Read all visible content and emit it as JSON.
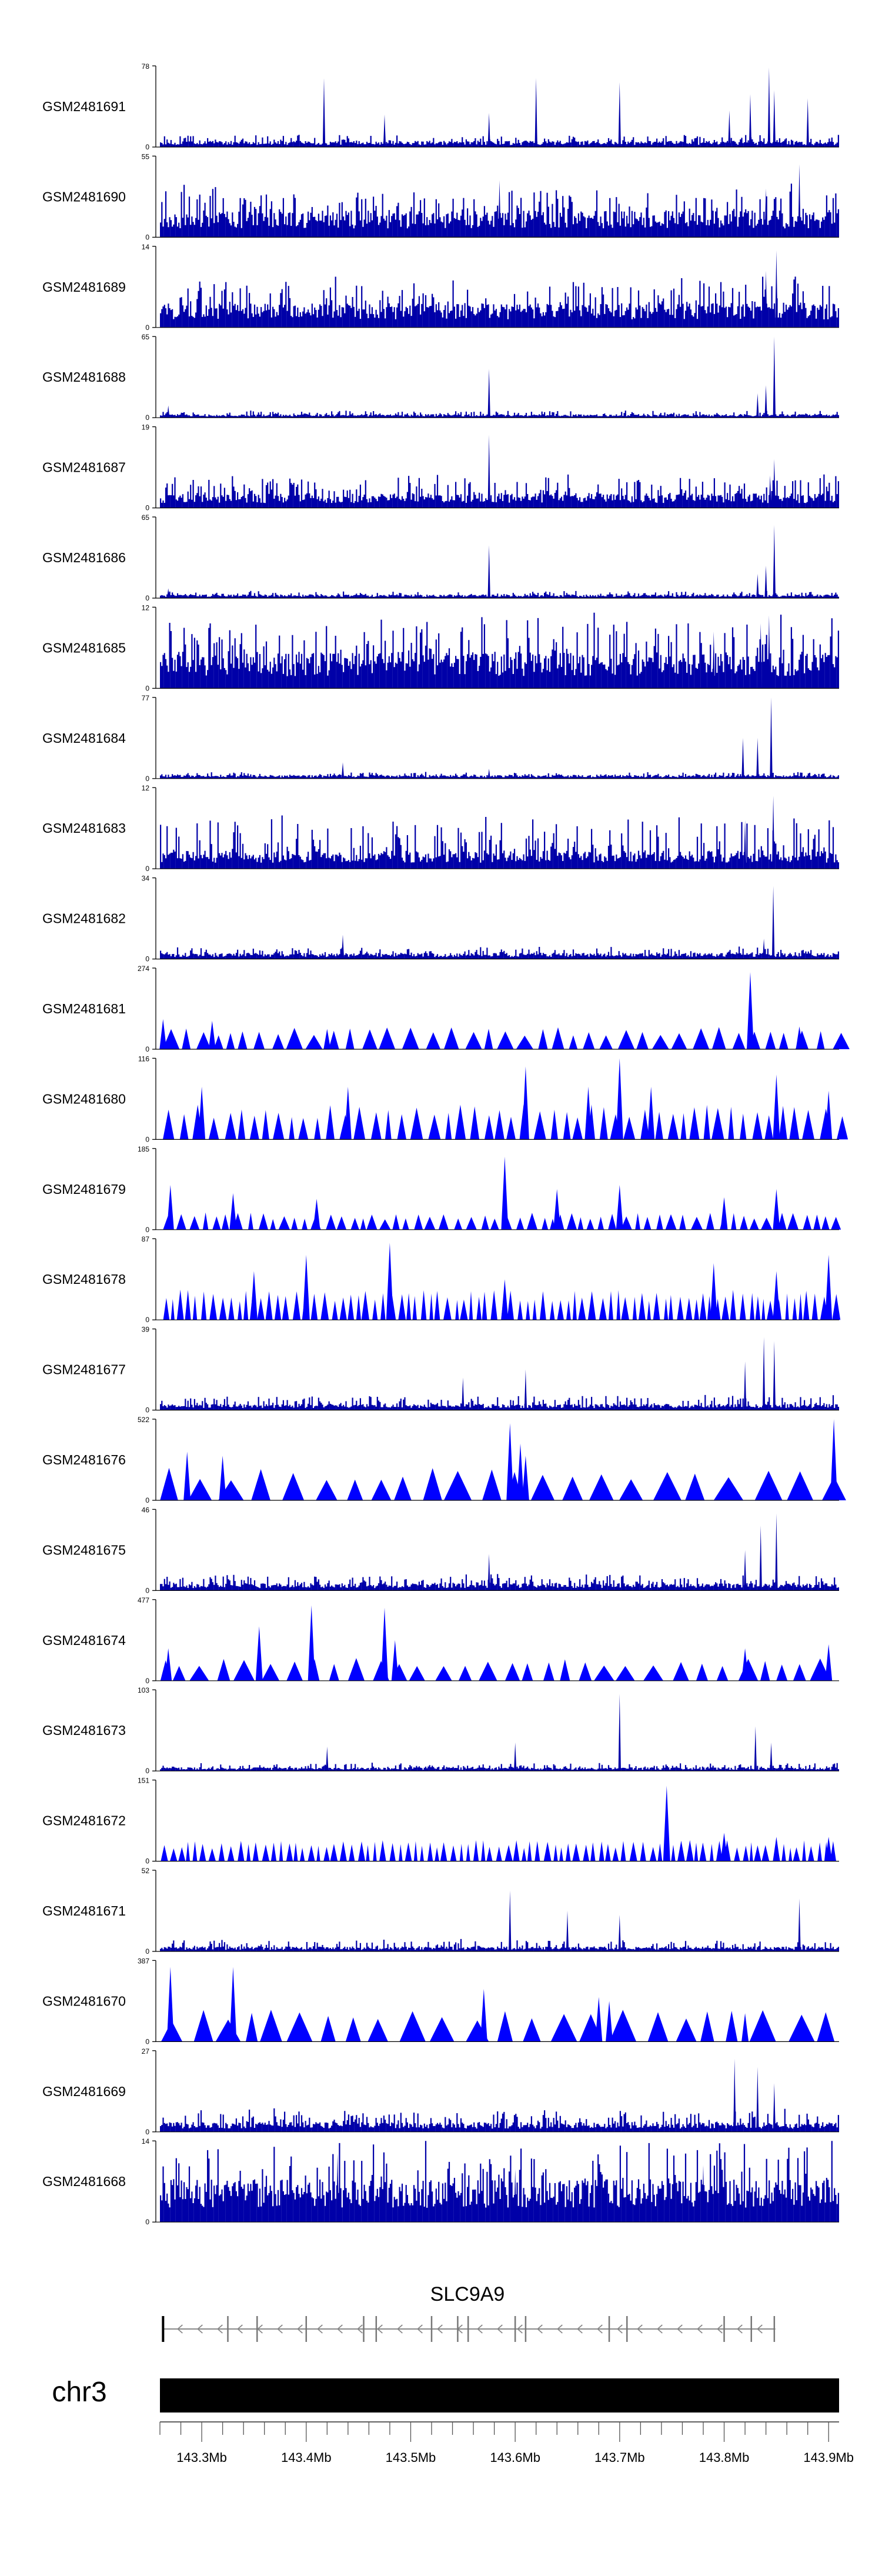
{
  "chart_data": {
    "type": "area",
    "title": "",
    "xlabel": "",
    "ylabel": "",
    "chromosome": "chr3",
    "gene": {
      "name": "SLC9A9",
      "strand": "-",
      "start_mb": 143.263,
      "end_mb": 143.849
    },
    "x_range_mb": [
      143.26,
      143.91
    ],
    "x_ticks": [
      "143.3Mb",
      "143.4Mb",
      "143.5Mb",
      "143.6Mb",
      "143.7Mb",
      "143.8Mb",
      "143.9Mb"
    ],
    "x_tick_values": [
      143.3,
      143.4,
      143.5,
      143.6,
      143.7,
      143.8,
      143.9
    ],
    "fill_color": "#0000ff",
    "series": [
      {
        "name": "GSM2481691",
        "ylim": [
          0,
          78
        ],
        "style": "dense",
        "baseline": 0.05,
        "noise": 0.08,
        "peaks": [
          [
            143.417,
            0.85
          ],
          [
            143.475,
            0.4
          ],
          [
            143.575,
            0.42
          ],
          [
            143.62,
            0.85
          ],
          [
            143.7,
            0.8
          ],
          [
            143.805,
            0.45
          ],
          [
            143.825,
            0.65
          ],
          [
            143.843,
            0.98
          ],
          [
            143.848,
            0.7
          ],
          [
            143.88,
            0.6
          ]
        ]
      },
      {
        "name": "GSM2481690",
        "ylim": [
          0,
          55
        ],
        "style": "dense",
        "baseline": 0.22,
        "noise": 0.35,
        "peaks": [
          [
            143.585,
            0.7
          ],
          [
            143.84,
            0.6
          ],
          [
            143.872,
            0.9
          ]
        ]
      },
      {
        "name": "GSM2481689",
        "ylim": [
          0,
          14
        ],
        "style": "dense",
        "baseline": 0.2,
        "noise": 0.35,
        "peaks": [
          [
            143.84,
            0.7
          ],
          [
            143.85,
            0.95
          ]
        ]
      },
      {
        "name": "GSM2481688",
        "ylim": [
          0,
          65
        ],
        "style": "dense",
        "baseline": 0.03,
        "noise": 0.05,
        "peaks": [
          [
            143.268,
            0.15
          ],
          [
            143.575,
            0.6
          ],
          [
            143.832,
            0.3
          ],
          [
            143.84,
            0.4
          ],
          [
            143.848,
            1.0
          ]
        ]
      },
      {
        "name": "GSM2481687",
        "ylim": [
          0,
          19
        ],
        "style": "dense",
        "baseline": 0.12,
        "noise": 0.25,
        "peaks": [
          [
            143.575,
            0.9
          ],
          [
            143.848,
            0.6
          ],
          [
            143.844,
            0.4
          ]
        ]
      },
      {
        "name": "GSM2481686",
        "ylim": [
          0,
          65
        ],
        "style": "dense",
        "baseline": 0.03,
        "noise": 0.05,
        "peaks": [
          [
            143.268,
            0.12
          ],
          [
            143.575,
            0.65
          ],
          [
            143.832,
            0.3
          ],
          [
            143.84,
            0.4
          ],
          [
            143.848,
            0.9
          ]
        ]
      },
      {
        "name": "GSM2481685",
        "ylim": [
          0,
          12
        ],
        "style": "dense",
        "baseline": 0.3,
        "noise": 0.5,
        "peaks": [
          [
            143.843,
            0.9
          ],
          [
            143.79,
            0.7
          ],
          [
            143.835,
            0.8
          ]
        ]
      },
      {
        "name": "GSM2481684",
        "ylim": [
          0,
          77
        ],
        "style": "dense",
        "baseline": 0.03,
        "noise": 0.04,
        "peaks": [
          [
            143.435,
            0.2
          ],
          [
            143.575,
            0.12
          ],
          [
            143.818,
            0.5
          ],
          [
            143.832,
            0.5
          ],
          [
            143.845,
            1.0
          ]
        ]
      },
      {
        "name": "GSM2481683",
        "ylim": [
          0,
          12
        ],
        "style": "dense",
        "baseline": 0.15,
        "noise": 0.45,
        "peaks": [
          [
            143.847,
            0.9
          ],
          [
            143.82,
            0.6
          ]
        ]
      },
      {
        "name": "GSM2481682",
        "ylim": [
          0,
          34
        ],
        "style": "dense",
        "baseline": 0.05,
        "noise": 0.08,
        "peaks": [
          [
            143.435,
            0.3
          ],
          [
            143.847,
            0.9
          ],
          [
            143.838,
            0.25
          ]
        ]
      },
      {
        "name": "GSM2481681",
        "ylim": [
          0,
          274
        ],
        "style": "triangles",
        "height": 0.22,
        "count": 40,
        "peaks": [
          [
            143.263,
            0.37
          ],
          [
            143.31,
            0.35
          ],
          [
            143.42,
            0.25
          ],
          [
            143.825,
            0.95
          ],
          [
            143.872,
            0.28
          ]
        ]
      },
      {
        "name": "GSM2481680",
        "ylim": [
          0,
          116
        ],
        "style": "triangles",
        "height": 0.35,
        "count": 55,
        "peaks": [
          [
            143.3,
            0.65
          ],
          [
            143.44,
            0.65
          ],
          [
            143.61,
            0.9
          ],
          [
            143.67,
            0.65
          ],
          [
            143.7,
            1.0
          ],
          [
            143.73,
            0.65
          ],
          [
            143.85,
            0.8
          ],
          [
            143.9,
            0.6
          ]
        ]
      },
      {
        "name": "GSM2481679",
        "ylim": [
          0,
          185
        ],
        "style": "triangles",
        "height": 0.17,
        "count": 60,
        "peaks": [
          [
            143.27,
            0.55
          ],
          [
            143.33,
            0.45
          ],
          [
            143.41,
            0.38
          ],
          [
            143.59,
            0.9
          ],
          [
            143.64,
            0.5
          ],
          [
            143.7,
            0.55
          ],
          [
            143.8,
            0.4
          ],
          [
            143.85,
            0.5
          ]
        ]
      },
      {
        "name": "GSM2481678",
        "ylim": [
          0,
          87
        ],
        "style": "triangles",
        "height": 0.3,
        "count": 85,
        "peaks": [
          [
            143.35,
            0.6
          ],
          [
            143.4,
            0.8
          ],
          [
            143.48,
            0.95
          ],
          [
            143.59,
            0.5
          ],
          [
            143.79,
            0.7
          ],
          [
            143.85,
            0.6
          ],
          [
            143.9,
            0.8
          ]
        ]
      },
      {
        "name": "GSM2481677",
        "ylim": [
          0,
          39
        ],
        "style": "dense",
        "baseline": 0.05,
        "noise": 0.12,
        "peaks": [
          [
            143.55,
            0.4
          ],
          [
            143.61,
            0.5
          ],
          [
            143.82,
            0.6
          ],
          [
            143.838,
            0.9
          ],
          [
            143.848,
            0.85
          ]
        ]
      },
      {
        "name": "GSM2481676",
        "ylim": [
          0,
          522
        ],
        "style": "triangles",
        "height": 0.32,
        "count": 24,
        "peaks": [
          [
            143.286,
            0.6
          ],
          [
            143.32,
            0.55
          ],
          [
            143.595,
            0.95
          ],
          [
            143.605,
            0.7
          ],
          [
            143.61,
            0.55
          ],
          [
            143.905,
            1.0
          ]
        ]
      },
      {
        "name": "GSM2481675",
        "ylim": [
          0,
          46
        ],
        "style": "dense",
        "baseline": 0.06,
        "noise": 0.12,
        "peaks": [
          [
            143.575,
            0.45
          ],
          [
            143.82,
            0.5
          ],
          [
            143.835,
            0.8
          ],
          [
            143.85,
            0.95
          ]
        ]
      },
      {
        "name": "GSM2481674",
        "ylim": [
          0,
          477
        ],
        "style": "triangles",
        "height": 0.23,
        "count": 32,
        "peaks": [
          [
            143.268,
            0.4
          ],
          [
            143.355,
            0.67
          ],
          [
            143.405,
            0.93
          ],
          [
            143.475,
            0.9
          ],
          [
            143.485,
            0.5
          ],
          [
            143.82,
            0.4
          ],
          [
            143.9,
            0.45
          ]
        ]
      },
      {
        "name": "GSM2481673",
        "ylim": [
          0,
          103
        ],
        "style": "dense",
        "baseline": 0.03,
        "noise": 0.06,
        "peaks": [
          [
            143.42,
            0.3
          ],
          [
            143.6,
            0.35
          ],
          [
            143.7,
            0.95
          ],
          [
            143.83,
            0.55
          ],
          [
            143.845,
            0.35
          ]
        ]
      },
      {
        "name": "GSM2481672",
        "ylim": [
          0,
          151
        ],
        "style": "triangles",
        "height": 0.21,
        "count": 90,
        "peaks": [
          [
            143.745,
            0.93
          ],
          [
            143.8,
            0.35
          ],
          [
            143.85,
            0.3
          ],
          [
            143.9,
            0.3
          ]
        ]
      },
      {
        "name": "GSM2481671",
        "ylim": [
          0,
          52
        ],
        "style": "dense",
        "baseline": 0.04,
        "noise": 0.1,
        "peaks": [
          [
            143.595,
            0.75
          ],
          [
            143.65,
            0.5
          ],
          [
            143.7,
            0.45
          ],
          [
            143.872,
            0.65
          ]
        ]
      },
      {
        "name": "GSM2481670",
        "ylim": [
          0,
          387
        ],
        "style": "triangles",
        "height": 0.32,
        "count": 26,
        "peaks": [
          [
            143.27,
            0.92
          ],
          [
            143.33,
            0.92
          ],
          [
            143.57,
            0.65
          ],
          [
            143.68,
            0.55
          ],
          [
            143.69,
            0.5
          ],
          [
            143.82,
            0.35
          ]
        ]
      },
      {
        "name": "GSM2481669",
        "ylim": [
          0,
          27
        ],
        "style": "dense",
        "baseline": 0.08,
        "noise": 0.18,
        "peaks": [
          [
            143.81,
            0.9
          ],
          [
            143.832,
            0.8
          ],
          [
            143.848,
            0.6
          ]
        ]
      },
      {
        "name": "GSM2481668",
        "ylim": [
          0,
          14
        ],
        "style": "dense",
        "baseline": 0.35,
        "noise": 0.55,
        "peaks": [
          [
            143.43,
            0.85
          ],
          [
            143.6,
            0.65
          ],
          [
            143.78,
            0.7
          ]
        ]
      }
    ]
  }
}
